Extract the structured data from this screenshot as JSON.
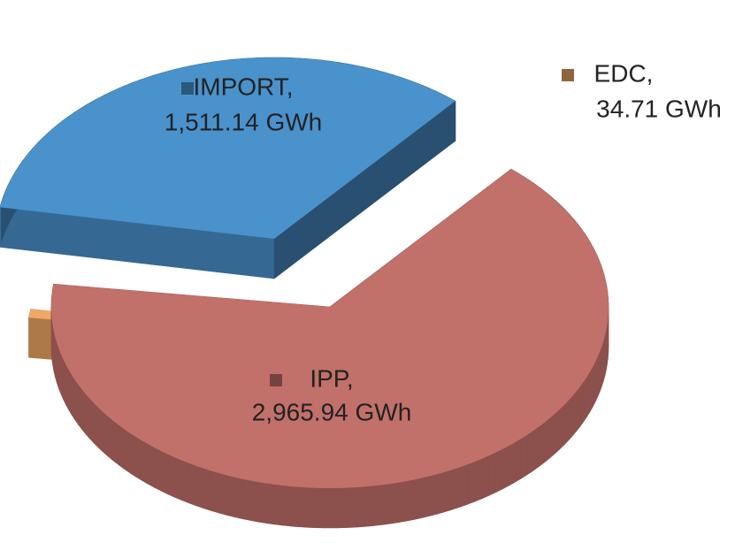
{
  "chart_data": {
    "type": "pie",
    "categories": [
      "IMPORT,",
      "IPP,",
      "EDC,"
    ],
    "values": [
      1511.14,
      2965.94,
      34.71
    ],
    "value_labels": [
      "1,511.14 GWh",
      "2,965.94 GWh",
      "34.71 GWh"
    ],
    "colors": [
      "#4a92cc",
      "#c2706a",
      "#f0a866"
    ]
  }
}
